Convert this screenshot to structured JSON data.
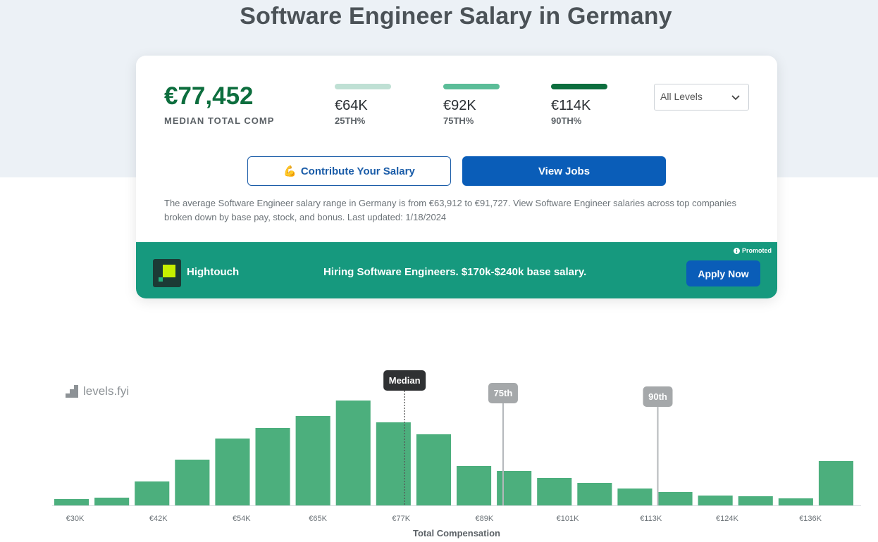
{
  "page": {
    "title": "Software Engineer Salary in Germany"
  },
  "summary": {
    "median_value": "€77,452",
    "median_label": "MEDIAN TOTAL COMP",
    "percentiles": [
      {
        "value": "€64K",
        "label": "25TH%",
        "color": "#bfe0d4"
      },
      {
        "value": "€92K",
        "label": "75TH%",
        "color": "#5bbd98"
      },
      {
        "value": "€114K",
        "label": "90TH%",
        "color": "#0d6e3e"
      }
    ],
    "level_select": "All Levels"
  },
  "actions": {
    "contribute_label": "Contribute Your Salary",
    "contribute_emoji": "💪",
    "view_jobs_label": "View Jobs"
  },
  "description": "The average Software Engineer salary range in Germany is from €63,912 to €91,727. View Software Engineer salaries across top companies broken down by base pay, stock, and bonus. Last updated: 1/18/2024",
  "promo": {
    "company": "Hightouch",
    "text": "Hiring Software Engineers. $170k-$240k base salary.",
    "badge": "Promoted",
    "button_label": "Apply Now"
  },
  "watermark": "levels.fyi",
  "chart_data": {
    "type": "bar",
    "xlabel": "Total Compensation",
    "ylabel": "",
    "x_start": 27,
    "bin_width": 5.8,
    "values": [
      9,
      11,
      34,
      65,
      95,
      110,
      127,
      149,
      118,
      101,
      56,
      49,
      39,
      32,
      24,
      19,
      14,
      13,
      10,
      63
    ],
    "ticks": [
      {
        "value": 30,
        "label": "€30K"
      },
      {
        "value": 42,
        "label": "€42K"
      },
      {
        "value": 54,
        "label": "€54K"
      },
      {
        "value": 65,
        "label": "€65K"
      },
      {
        "value": 77,
        "label": "€77K"
      },
      {
        "value": 89,
        "label": "€89K"
      },
      {
        "value": 101,
        "label": "€101K"
      },
      {
        "value": 113,
        "label": "€113K"
      },
      {
        "value": 124,
        "label": "€124K"
      },
      {
        "value": 136,
        "label": "€136K"
      }
    ],
    "markers": [
      {
        "label": "Median",
        "value": 77.5,
        "style": "dark"
      },
      {
        "label": "75th",
        "value": 91.7,
        "style": "gray"
      },
      {
        "label": "90th",
        "value": 114,
        "style": "gray"
      }
    ],
    "bar_color": "#4caf7d",
    "ylim": [
      0,
      150
    ]
  }
}
